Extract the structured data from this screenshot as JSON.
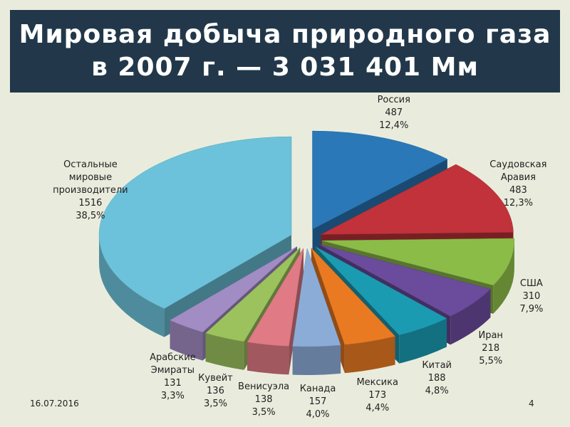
{
  "title": [
    "Мировая добыча природного газа",
    "в 2007 г. — 3 031 401 Мм"
  ],
  "footer": {
    "date": "16.07.2016",
    "page": "4"
  },
  "chart_data": {
    "type": "pie",
    "categories": [
      "Россия",
      "Саудовская Аравия",
      "США",
      "Иран",
      "Китай",
      "Мексика",
      "Канада",
      "Венисуэла",
      "Кувейт",
      "Арабские Эмираты",
      "Остальные мировые производители"
    ],
    "values": [
      487,
      483,
      310,
      218,
      188,
      173,
      157,
      138,
      136,
      131,
      1516
    ],
    "shares": [
      12.4,
      12.3,
      7.9,
      5.5,
      4.8,
      4.4,
      4.0,
      3.5,
      3.5,
      3.3,
      38.5
    ],
    "share_labels": [
      "12,4%",
      "12,3%",
      "7,9%",
      "5,5%",
      "4,8%",
      "4,4%",
      "4,0%",
      "3,5%",
      "3,5%",
      "3,3%",
      "38,5%"
    ],
    "colors": [
      "#2a78b8",
      "#c2323a",
      "#8cbc48",
      "#6b4b9c",
      "#1b9bb2",
      "#ea7a22",
      "#8cacd8",
      "#e07a84",
      "#9cc25e",
      "#a28cc4",
      "#6cc2da"
    ]
  }
}
